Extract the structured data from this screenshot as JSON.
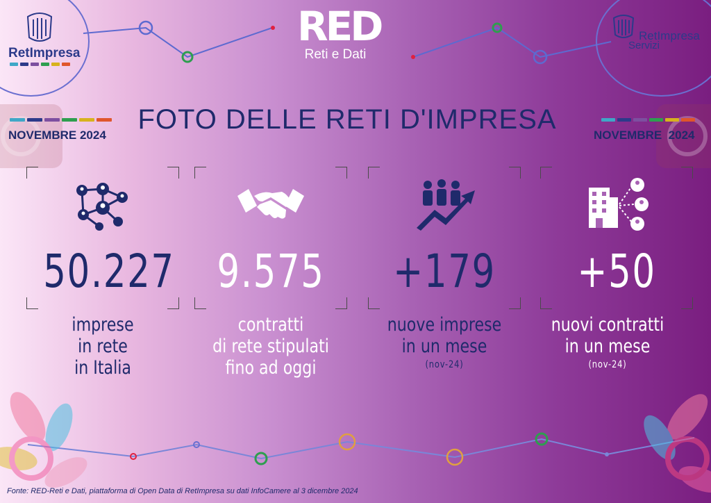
{
  "header": {
    "left_logo": "RetImpresa",
    "center_logo": {
      "mark": "RED",
      "tagline": "Reti e Dati"
    },
    "right_logo": {
      "line1": "RetImpresa",
      "line2": "Servizi"
    },
    "title": "FOTO DELLE RETI D'IMPRESA",
    "month_left": "NOVEMBRE 2024",
    "month_right": "NOVEMBRE  2024"
  },
  "stats": [
    {
      "icon": "network-people-icon",
      "value": "50.227",
      "label": [
        "imprese",
        "in rete",
        "in Italia"
      ],
      "sublabel": ""
    },
    {
      "icon": "handshake-icon",
      "value": "9.575",
      "label": [
        "contratti",
        "di rete stipulati",
        "fino ad oggi"
      ],
      "sublabel": ""
    },
    {
      "icon": "growth-people-icon",
      "value": "+179",
      "label": [
        "nuove imprese",
        "in un mese"
      ],
      "sublabel": "(nov-24)"
    },
    {
      "icon": "building-network-icon",
      "value": "+50",
      "label": [
        "nuovi contratti",
        "in un mese"
      ],
      "sublabel": "(nov-24)"
    }
  ],
  "footer": "Fonte: RED-Reti e Dati, piattaforma di Open Data di RetImpresa su dati InfoCamere al 3 dicembre 2024",
  "colors": {
    "navy": "#1f2a6b",
    "bar_colors": [
      "#3fa7c7",
      "#2c3a8a",
      "#7d4fa0",
      "#2e9e4f",
      "#d7b21d",
      "#e0562b"
    ]
  }
}
